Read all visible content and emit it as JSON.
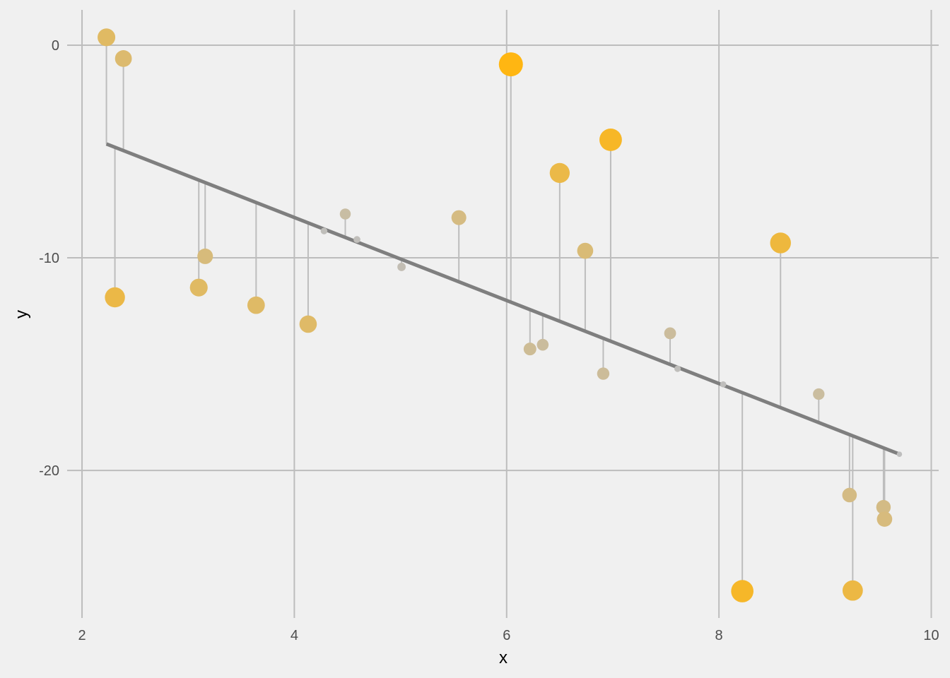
{
  "chart_data": {
    "type": "scatter",
    "title": "",
    "xlabel": "x",
    "ylabel": "y",
    "xlim": [
      1.86,
      10.07
    ],
    "ylim": [
      -26.94,
      1.66
    ],
    "xticks": [
      2,
      4,
      6,
      8,
      10
    ],
    "yticks": [
      0,
      -10,
      -20
    ],
    "grid": true,
    "legend": "none",
    "fit_line": {
      "intercept": -0.29,
      "slope": -1.953
    },
    "encoding": "point size and color scale with absolute residual; vertical segments connect each point to the fitted line",
    "colors": {
      "background": "#f0f0f0",
      "grid": "#bdbdbd",
      "line": "#7f7f7f",
      "segment": "#bdbdbd",
      "low_residual": "#bebebe",
      "high_residual": "#ffb612"
    },
    "points": [
      {
        "x": 2.23,
        "y": 0.37
      },
      {
        "x": 2.39,
        "y": -0.63
      },
      {
        "x": 2.31,
        "y": -11.86
      },
      {
        "x": 3.1,
        "y": -11.4
      },
      {
        "x": 3.16,
        "y": -9.93
      },
      {
        "x": 3.64,
        "y": -12.23
      },
      {
        "x": 4.13,
        "y": -13.12
      },
      {
        "x": 4.28,
        "y": -8.74
      },
      {
        "x": 4.48,
        "y": -7.94
      },
      {
        "x": 4.59,
        "y": -9.14
      },
      {
        "x": 5.01,
        "y": -10.43
      },
      {
        "x": 5.55,
        "y": -8.11
      },
      {
        "x": 6.04,
        "y": -0.9
      },
      {
        "x": 6.22,
        "y": -14.29
      },
      {
        "x": 6.34,
        "y": -14.09
      },
      {
        "x": 6.5,
        "y": -6.01
      },
      {
        "x": 6.74,
        "y": -9.67
      },
      {
        "x": 6.91,
        "y": -15.45
      },
      {
        "x": 6.98,
        "y": -4.45
      },
      {
        "x": 7.54,
        "y": -13.55
      },
      {
        "x": 7.61,
        "y": -15.22
      },
      {
        "x": 8.04,
        "y": -15.95
      },
      {
        "x": 8.22,
        "y": -25.68
      },
      {
        "x": 8.58,
        "y": -9.3
      },
      {
        "x": 8.94,
        "y": -16.41
      },
      {
        "x": 9.23,
        "y": -21.16
      },
      {
        "x": 9.26,
        "y": -25.65
      },
      {
        "x": 9.55,
        "y": -21.73
      },
      {
        "x": 9.56,
        "y": -22.29
      },
      {
        "x": 9.7,
        "y": -19.24
      }
    ]
  }
}
